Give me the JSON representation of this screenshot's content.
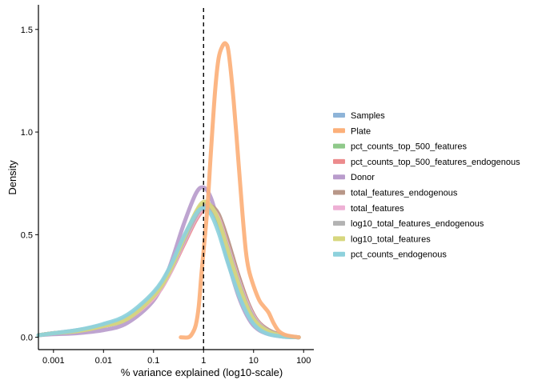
{
  "chart_data": {
    "type": "line",
    "title": "",
    "xlabel": "% variance explained (log10-scale)",
    "ylabel": "Density",
    "x_scale": "log10",
    "xlim": [
      0.0005,
      160
    ],
    "ylim": [
      -0.06,
      1.62
    ],
    "x_ticks": [
      {
        "value": 0.001,
        "label": "0.001"
      },
      {
        "value": 0.01,
        "label": "0.01"
      },
      {
        "value": 0.1,
        "label": "0.1"
      },
      {
        "value": 1,
        "label": "1"
      },
      {
        "value": 10,
        "label": "10"
      },
      {
        "value": 100,
        "label": "100"
      }
    ],
    "y_ticks": [
      {
        "value": 0.0,
        "label": "0.0"
      },
      {
        "value": 0.5,
        "label": "0.5"
      },
      {
        "value": 1.0,
        "label": "1.0"
      },
      {
        "value": 1.5,
        "label": "1.5"
      }
    ],
    "reference_line": {
      "x": 1,
      "style": "dashed"
    },
    "grid": false,
    "legend_position": "right",
    "series": [
      {
        "name": "Samples",
        "color": "#8eb4d8",
        "points": [
          [
            0.0005,
            0.01
          ],
          [
            0.001,
            0.02
          ],
          [
            0.003,
            0.035
          ],
          [
            0.01,
            0.06
          ],
          [
            0.03,
            0.1
          ],
          [
            0.1,
            0.21
          ],
          [
            0.2,
            0.32
          ],
          [
            0.4,
            0.48
          ],
          [
            0.7,
            0.6
          ],
          [
            1.0,
            0.64
          ],
          [
            1.4,
            0.62
          ],
          [
            2.0,
            0.54
          ],
          [
            3.0,
            0.4
          ],
          [
            5.0,
            0.24
          ],
          [
            8.0,
            0.12
          ],
          [
            12.0,
            0.06
          ],
          [
            20.0,
            0.025
          ],
          [
            40.0,
            0.005
          ],
          [
            80.0,
            0.0
          ]
        ]
      },
      {
        "name": "Plate",
        "color": "#fcb07a",
        "points": [
          [
            0.35,
            0.0
          ],
          [
            0.5,
            0.0
          ],
          [
            0.6,
            0.02
          ],
          [
            0.7,
            0.06
          ],
          [
            0.8,
            0.15
          ],
          [
            0.9,
            0.3
          ],
          [
            1.0,
            0.42
          ],
          [
            1.2,
            0.64
          ],
          [
            1.4,
            0.9
          ],
          [
            1.7,
            1.2
          ],
          [
            2.0,
            1.36
          ],
          [
            2.4,
            1.42
          ],
          [
            2.8,
            1.43
          ],
          [
            3.2,
            1.38
          ],
          [
            4.0,
            1.15
          ],
          [
            5.0,
            0.85
          ],
          [
            6.0,
            0.6
          ],
          [
            7.0,
            0.42
          ],
          [
            8.0,
            0.33
          ],
          [
            10.0,
            0.25
          ],
          [
            13.0,
            0.18
          ],
          [
            16.0,
            0.15
          ],
          [
            20.0,
            0.12
          ],
          [
            25.0,
            0.07
          ],
          [
            32.0,
            0.03
          ],
          [
            45.0,
            0.01
          ],
          [
            80.0,
            0.0
          ]
        ]
      },
      {
        "name": "pct_counts_top_500_features",
        "color": "#8fc98a",
        "points": [
          [
            0.0005,
            0.01
          ],
          [
            0.001,
            0.02
          ],
          [
            0.003,
            0.03
          ],
          [
            0.01,
            0.055
          ],
          [
            0.03,
            0.09
          ],
          [
            0.1,
            0.2
          ],
          [
            0.2,
            0.31
          ],
          [
            0.4,
            0.47
          ],
          [
            0.7,
            0.6
          ],
          [
            1.0,
            0.65
          ],
          [
            1.4,
            0.63
          ],
          [
            2.0,
            0.56
          ],
          [
            3.0,
            0.42
          ],
          [
            5.0,
            0.26
          ],
          [
            8.0,
            0.13
          ],
          [
            12.0,
            0.065
          ],
          [
            20.0,
            0.03
          ],
          [
            40.0,
            0.006
          ],
          [
            80.0,
            0.0
          ]
        ]
      },
      {
        "name": "pct_counts_top_500_features_endogenous",
        "color": "#ec8b8d",
        "points": [
          [
            0.0005,
            0.01
          ],
          [
            0.001,
            0.02
          ],
          [
            0.003,
            0.03
          ],
          [
            0.01,
            0.055
          ],
          [
            0.03,
            0.09
          ],
          [
            0.1,
            0.19
          ],
          [
            0.2,
            0.3
          ],
          [
            0.4,
            0.45
          ],
          [
            0.7,
            0.57
          ],
          [
            1.0,
            0.62
          ],
          [
            1.4,
            0.63
          ],
          [
            2.0,
            0.59
          ],
          [
            3.0,
            0.47
          ],
          [
            5.0,
            0.3
          ],
          [
            8.0,
            0.16
          ],
          [
            12.0,
            0.08
          ],
          [
            20.0,
            0.035
          ],
          [
            40.0,
            0.008
          ],
          [
            80.0,
            0.0
          ]
        ]
      },
      {
        "name": "Donor",
        "color": "#b99ccc",
        "points": [
          [
            0.0005,
            0.01
          ],
          [
            0.001,
            0.015
          ],
          [
            0.003,
            0.02
          ],
          [
            0.01,
            0.035
          ],
          [
            0.03,
            0.07
          ],
          [
            0.1,
            0.18
          ],
          [
            0.2,
            0.33
          ],
          [
            0.4,
            0.55
          ],
          [
            0.7,
            0.7
          ],
          [
            1.0,
            0.73
          ],
          [
            1.4,
            0.68
          ],
          [
            2.0,
            0.55
          ],
          [
            3.0,
            0.38
          ],
          [
            5.0,
            0.2
          ],
          [
            8.0,
            0.09
          ],
          [
            12.0,
            0.04
          ],
          [
            20.0,
            0.015
          ],
          [
            40.0,
            0.003
          ],
          [
            80.0,
            0.0
          ]
        ]
      },
      {
        "name": "total_features_endogenous",
        "color": "#b89788",
        "points": [
          [
            0.0005,
            0.01
          ],
          [
            0.001,
            0.02
          ],
          [
            0.003,
            0.03
          ],
          [
            0.01,
            0.055
          ],
          [
            0.03,
            0.09
          ],
          [
            0.1,
            0.19
          ],
          [
            0.2,
            0.3
          ],
          [
            0.4,
            0.46
          ],
          [
            0.7,
            0.58
          ],
          [
            1.0,
            0.63
          ],
          [
            1.4,
            0.64
          ],
          [
            2.0,
            0.6
          ],
          [
            3.0,
            0.48
          ],
          [
            5.0,
            0.3
          ],
          [
            8.0,
            0.16
          ],
          [
            12.0,
            0.08
          ],
          [
            20.0,
            0.035
          ],
          [
            40.0,
            0.008
          ],
          [
            80.0,
            0.0
          ]
        ]
      },
      {
        "name": "total_features",
        "color": "#eeb0d5",
        "points": [
          [
            0.0005,
            0.01
          ],
          [
            0.001,
            0.02
          ],
          [
            0.003,
            0.03
          ],
          [
            0.01,
            0.055
          ],
          [
            0.03,
            0.09
          ],
          [
            0.1,
            0.19
          ],
          [
            0.2,
            0.3
          ],
          [
            0.4,
            0.46
          ],
          [
            0.7,
            0.58
          ],
          [
            1.0,
            0.63
          ],
          [
            1.4,
            0.63
          ],
          [
            2.0,
            0.58
          ],
          [
            3.0,
            0.45
          ],
          [
            5.0,
            0.28
          ],
          [
            8.0,
            0.15
          ],
          [
            12.0,
            0.075
          ],
          [
            20.0,
            0.03
          ],
          [
            40.0,
            0.006
          ],
          [
            80.0,
            0.0
          ]
        ]
      },
      {
        "name": "log10_total_features_endogenous",
        "color": "#b3b3b3",
        "points": [
          [
            0.0005,
            0.01
          ],
          [
            0.001,
            0.02
          ],
          [
            0.003,
            0.03
          ],
          [
            0.01,
            0.055
          ],
          [
            0.03,
            0.09
          ],
          [
            0.1,
            0.2
          ],
          [
            0.2,
            0.31
          ],
          [
            0.4,
            0.47
          ],
          [
            0.7,
            0.59
          ],
          [
            1.0,
            0.64
          ],
          [
            1.4,
            0.63
          ],
          [
            2.0,
            0.57
          ],
          [
            3.0,
            0.44
          ],
          [
            5.0,
            0.27
          ],
          [
            8.0,
            0.14
          ],
          [
            12.0,
            0.07
          ],
          [
            20.0,
            0.03
          ],
          [
            40.0,
            0.006
          ],
          [
            80.0,
            0.0
          ]
        ]
      },
      {
        "name": "log10_total_features",
        "color": "#d7d77e",
        "points": [
          [
            0.0005,
            0.01
          ],
          [
            0.001,
            0.02
          ],
          [
            0.003,
            0.03
          ],
          [
            0.01,
            0.055
          ],
          [
            0.03,
            0.09
          ],
          [
            0.1,
            0.2
          ],
          [
            0.2,
            0.31
          ],
          [
            0.4,
            0.48
          ],
          [
            0.7,
            0.61
          ],
          [
            1.0,
            0.66
          ],
          [
            1.4,
            0.64
          ],
          [
            2.0,
            0.57
          ],
          [
            3.0,
            0.43
          ],
          [
            5.0,
            0.26
          ],
          [
            8.0,
            0.13
          ],
          [
            12.0,
            0.065
          ],
          [
            20.0,
            0.028
          ],
          [
            40.0,
            0.005
          ],
          [
            80.0,
            0.0
          ]
        ]
      },
      {
        "name": "pct_counts_endogenous",
        "color": "#8dd1dc",
        "points": [
          [
            0.0005,
            0.01
          ],
          [
            0.001,
            0.02
          ],
          [
            0.003,
            0.035
          ],
          [
            0.01,
            0.065
          ],
          [
            0.03,
            0.11
          ],
          [
            0.1,
            0.22
          ],
          [
            0.2,
            0.33
          ],
          [
            0.4,
            0.49
          ],
          [
            0.7,
            0.6
          ],
          [
            1.0,
            0.63
          ],
          [
            1.4,
            0.6
          ],
          [
            2.0,
            0.51
          ],
          [
            3.0,
            0.37
          ],
          [
            5.0,
            0.21
          ],
          [
            8.0,
            0.1
          ],
          [
            12.0,
            0.045
          ],
          [
            20.0,
            0.015
          ],
          [
            40.0,
            0.003
          ],
          [
            80.0,
            0.0
          ]
        ]
      }
    ]
  }
}
